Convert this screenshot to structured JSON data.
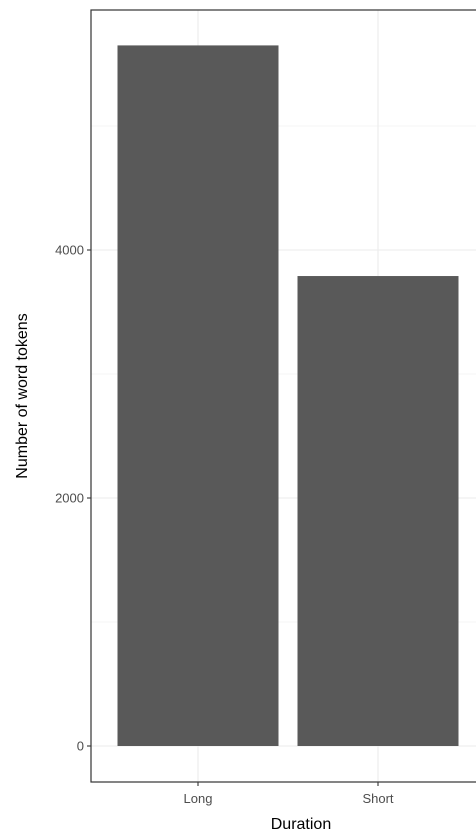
{
  "chart_data": {
    "type": "bar",
    "categories": [
      "Long",
      "Short"
    ],
    "values": [
      5650,
      3790
    ],
    "xlabel": "Duration",
    "ylabel": "Number of word tokens",
    "ylim": [
      0,
      6000
    ],
    "y_ticks": [
      0,
      2000,
      4000
    ],
    "y_minor_ticks": [
      1000,
      3000,
      5000
    ],
    "grid": true,
    "colors": {
      "bar": "#595959",
      "grid": "#ebebeb",
      "panel_border": "#333333",
      "tick_label": "#4d4d4d"
    }
  }
}
